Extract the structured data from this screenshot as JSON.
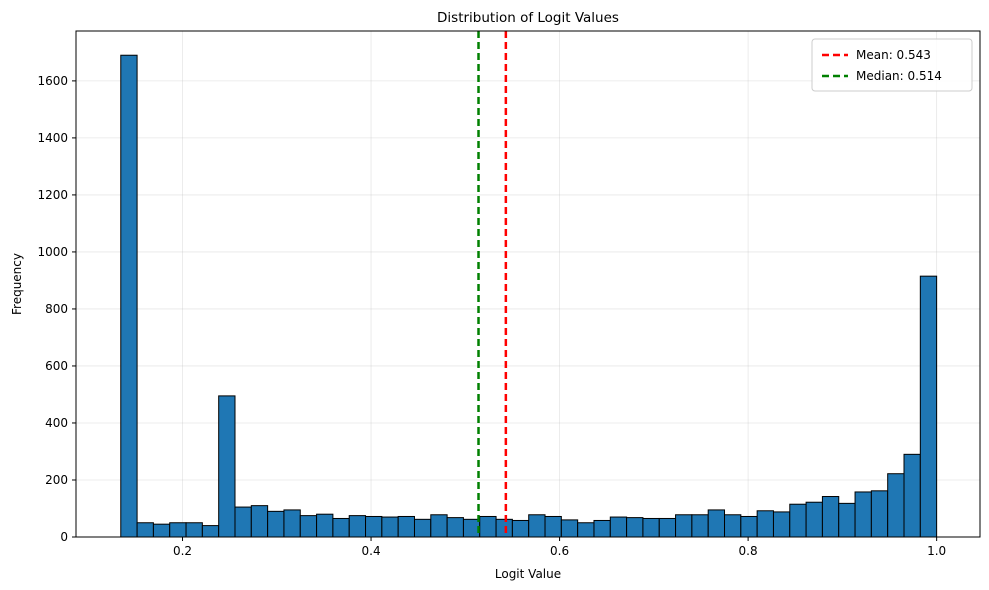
{
  "chart_data": {
    "type": "bar",
    "subtype": "histogram",
    "title": "Distribution of Logit Values",
    "xlabel": "Logit Value",
    "ylabel": "Frequency",
    "xlim": [
      0.087,
      1.046
    ],
    "ylim": [
      0,
      1775
    ],
    "x_ticks": [
      0.2,
      0.4,
      0.6,
      0.8,
      1.0
    ],
    "x_tick_labels": [
      "0.2",
      "0.4",
      "0.6",
      "0.8",
      "1.0"
    ],
    "y_ticks": [
      0,
      200,
      400,
      600,
      800,
      1000,
      1200,
      1400,
      1600
    ],
    "y_tick_labels": [
      "0",
      "200",
      "400",
      "600",
      "800",
      "1000",
      "1200",
      "1400",
      "1600"
    ],
    "grid": true,
    "bar_color": "#1f77b4",
    "bar_edge_color": "#000000",
    "bins": {
      "start": 0.1345,
      "end": 1.0,
      "values": [
        1690,
        50,
        45,
        50,
        50,
        40,
        495,
        105,
        110,
        90,
        95,
        75,
        80,
        65,
        75,
        72,
        70,
        72,
        62,
        78,
        68,
        62,
        72,
        62,
        58,
        78,
        72,
        60,
        50,
        58,
        70,
        68,
        65,
        65,
        78,
        78,
        95,
        78,
        72,
        92,
        88,
        115,
        122,
        142,
        118,
        158,
        162,
        222,
        290,
        915
      ]
    },
    "reference_lines": [
      {
        "name": "Mean: 0.543",
        "x": 0.543,
        "color": "#ff0000",
        "style": "dashed"
      },
      {
        "name": "Median: 0.514",
        "x": 0.514,
        "color": "#008000",
        "style": "dashed"
      }
    ],
    "legend": {
      "placement": "top-right",
      "entries": [
        "Mean: 0.543",
        "Median: 0.514"
      ]
    }
  }
}
